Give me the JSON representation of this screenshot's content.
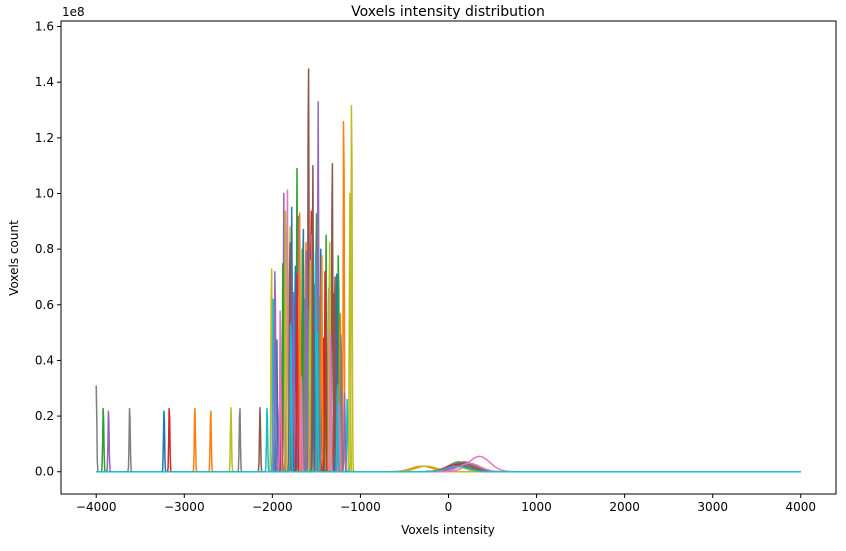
{
  "chart_data": {
    "type": "line",
    "title": "Voxels intensity distribution",
    "xlabel": "Voxels intensity",
    "ylabel": "Voxels count",
    "y_scale_factor_label": "1e8",
    "xlim": [
      -4400,
      4400
    ],
    "ylim": [
      -0.08,
      1.62
    ],
    "y_unit_multiplier": 100000000,
    "xticks": [
      -4000,
      -3000,
      -2000,
      -1000,
      0,
      1000,
      2000,
      3000,
      4000
    ],
    "xtick_labels": [
      "−4000",
      "−3000",
      "−2000",
      "−1000",
      "0",
      "1000",
      "2000",
      "3000",
      "4000"
    ],
    "yticks": [
      0.0,
      0.2,
      0.4,
      0.6,
      0.8,
      1.0,
      1.2,
      1.4,
      1.6
    ],
    "ytick_labels": [
      "0.0",
      "0.2",
      "0.4",
      "0.6",
      "0.8",
      "1.0",
      "1.2",
      "1.4",
      "1.6"
    ],
    "grid": false,
    "legend": false,
    "x_domain": [
      -4000,
      4000
    ],
    "palette": [
      "#1f77b4",
      "#ff7f0e",
      "#2ca02c",
      "#d62728",
      "#9467bd",
      "#8c564b",
      "#e377c2",
      "#7f7f7f",
      "#bcbd22",
      "#17becf"
    ],
    "series": [
      {
        "color": "#7f7f7f",
        "spikes": [
          [
            -4000,
            0.31
          ],
          [
            -3620,
            0.24
          ]
        ],
        "bump": [
          150,
          0.03
        ]
      },
      {
        "color": "#2ca02c",
        "spikes": [
          [
            -3920,
            0.24
          ],
          [
            -1720,
            1.09
          ],
          [
            -1500,
            0.98
          ],
          [
            -1250,
            0.82
          ]
        ],
        "bump": [
          120,
          0.035
        ]
      },
      {
        "color": "#9467bd",
        "spikes": [
          [
            -3860,
            0.23
          ],
          [
            -1870,
            1.0
          ],
          [
            -1480,
            1.33
          ],
          [
            -1700,
            0.97
          ]
        ],
        "bump": [
          100,
          0.03
        ]
      },
      {
        "color": "#1f77b4",
        "spikes": [
          [
            -3230,
            0.23
          ],
          [
            -1780,
            0.95
          ],
          [
            -1650,
            0.92
          ],
          [
            -1450,
            0.8
          ]
        ],
        "bump": [
          180,
          0.035
        ]
      },
      {
        "color": "#d62728",
        "spikes": [
          [
            -3170,
            0.24
          ],
          [
            -1560,
            0.99
          ],
          [
            -1420,
            0.48
          ],
          [
            -1300,
            0.64
          ]
        ],
        "bump": [
          160,
          0.03
        ]
      },
      {
        "color": "#ff7f0e",
        "spikes": [
          [
            -2880,
            0.24
          ],
          [
            -2700,
            0.23
          ],
          [
            -1620,
            0.87
          ],
          [
            -1190,
            1.33
          ]
        ],
        "bump": [
          -300,
          0.02
        ]
      },
      {
        "color": "#bcbd22",
        "spikes": [
          [
            -2470,
            0.23
          ],
          [
            -2010,
            0.77
          ],
          [
            -1800,
            0.93
          ],
          [
            -1100,
            1.39
          ]
        ],
        "bump": [
          -250,
          0.02
        ]
      },
      {
        "color": "#8c564b",
        "spikes": [
          [
            -2140,
            0.23
          ],
          [
            -1590,
            1.53
          ],
          [
            -1320,
            1.17
          ],
          [
            -1920,
            0.25
          ]
        ],
        "bump": [
          200,
          0.03
        ]
      },
      {
        "color": "#e377c2",
        "spikes": [
          [
            -1830,
            1.07
          ],
          [
            -1550,
            0.9
          ],
          [
            -1710,
            0.66
          ],
          [
            -1360,
            0.66
          ]
        ],
        "bump": [
          350,
          0.055
        ]
      },
      {
        "color": "#17becf",
        "spikes": [
          [
            -1990,
            0.62
          ],
          [
            -1600,
            0.59
          ],
          [
            -1510,
            0.79
          ],
          [
            -1150,
            0.26
          ]
        ],
        "bump": [
          130,
          0.03
        ]
      },
      {
        "color": "#2ca02c",
        "spikes": [
          [
            -1880,
            0.79
          ],
          [
            -1660,
            0.8
          ],
          [
            -1390,
            0.85
          ]
        ],
        "bump": [
          80,
          0.02
        ]
      },
      {
        "color": "#1f77b4",
        "spikes": [
          [
            -1950,
            0.5
          ],
          [
            -1740,
            0.78
          ],
          [
            -1530,
            0.71
          ],
          [
            -1270,
            0.71
          ]
        ],
        "bump": [
          110,
          0.025
        ]
      },
      {
        "color": "#9467bd",
        "spikes": [
          [
            -1970,
            0.76
          ],
          [
            -1760,
            0.68
          ],
          [
            -1610,
            0.84
          ],
          [
            -1180,
            0.28
          ]
        ],
        "bump": [
          190,
          0.025
        ]
      },
      {
        "color": "#ff7f0e",
        "spikes": [
          [
            -1690,
            0.93
          ],
          [
            -1440,
            0.82
          ],
          [
            -1230,
            0.6
          ]
        ],
        "bump": [
          140,
          0.03
        ]
      },
      {
        "color": "#bcbd22",
        "spikes": [
          [
            -1850,
            0.99
          ],
          [
            -1570,
            0.76
          ],
          [
            -1350,
            0.87
          ],
          [
            -1120,
            1.0
          ]
        ],
        "bump": [
          60,
          0.02
        ]
      },
      {
        "color": "#7f7f7f",
        "spikes": [
          [
            -2370,
            0.24
          ],
          [
            -1630,
            0.62
          ],
          [
            -1470,
            0.66
          ],
          [
            -1220,
            0.52
          ]
        ],
        "bump": [
          170,
          0.035
        ]
      },
      {
        "color": "#8c564b",
        "spikes": [
          [
            -1800,
            0.87
          ],
          [
            -1540,
            1.1
          ],
          [
            -1290,
            0.74
          ]
        ],
        "bump": [
          150,
          0.03
        ]
      },
      {
        "color": "#d62728",
        "spikes": [
          [
            -1900,
            0.33
          ],
          [
            -1720,
            0.71
          ],
          [
            -1400,
            0.76
          ]
        ],
        "bump": [
          90,
          0.025
        ]
      },
      {
        "color": "#e377c2",
        "spikes": [
          [
            -1910,
            0.61
          ],
          [
            -1670,
            0.36
          ],
          [
            -1340,
            0.53
          ],
          [
            -1240,
            0.24
          ]
        ],
        "bump": [
          240,
          0.03
        ]
      },
      {
        "color": "#17becf",
        "spikes": [
          [
            -2060,
            0.24
          ],
          [
            -1790,
            0.56
          ],
          [
            -1490,
            0.53
          ],
          [
            -1260,
            0.33
          ]
        ],
        "bump": [
          100,
          0.02
        ]
      }
    ]
  }
}
